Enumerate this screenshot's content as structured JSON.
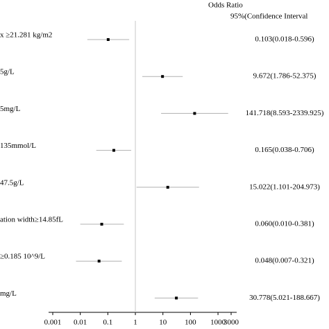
{
  "chart_data": {
    "type": "forest",
    "header": [
      "Odds Ratio",
      "95%(Confidence Interval"
    ],
    "categories": [
      "x ≥21.281 kg/m2",
      "5g/L",
      "5mg/L",
      "135mmol/L",
      "47.5g/L",
      "ation width≥14.85fL",
      "≥0.185 10^9/L",
      "mg/L"
    ],
    "values": [
      0.103,
      9.672,
      141.718,
      0.165,
      15.022,
      0.06,
      0.048,
      30.778
    ],
    "lower": [
      0.018,
      1.786,
      8.593,
      0.038,
      1.101,
      0.01,
      0.007,
      5.021
    ],
    "upper": [
      0.596,
      52.375,
      2339.925,
      0.706,
      204.973,
      0.381,
      0.321,
      188.667
    ],
    "value_labels": [
      "0.103(0.018-0.596)",
      "9.672(1.786-52.375)",
      "141.718(8.593-2339.925)",
      "0.165(0.038-0.706)",
      "15.022(1.101-204.973)",
      "0.060(0.010-0.381)",
      "0.048(0.007-0.321)",
      "30.778(5.021-188.667)"
    ],
    "xlim": [
      0.001,
      3000
    ],
    "xticks": [
      0.001,
      0.01,
      0.1,
      1,
      10,
      100,
      1000,
      3000
    ],
    "log_x": true,
    "reference_x": 1,
    "color": "#000000",
    "ci_color": "#b0b0b0"
  }
}
